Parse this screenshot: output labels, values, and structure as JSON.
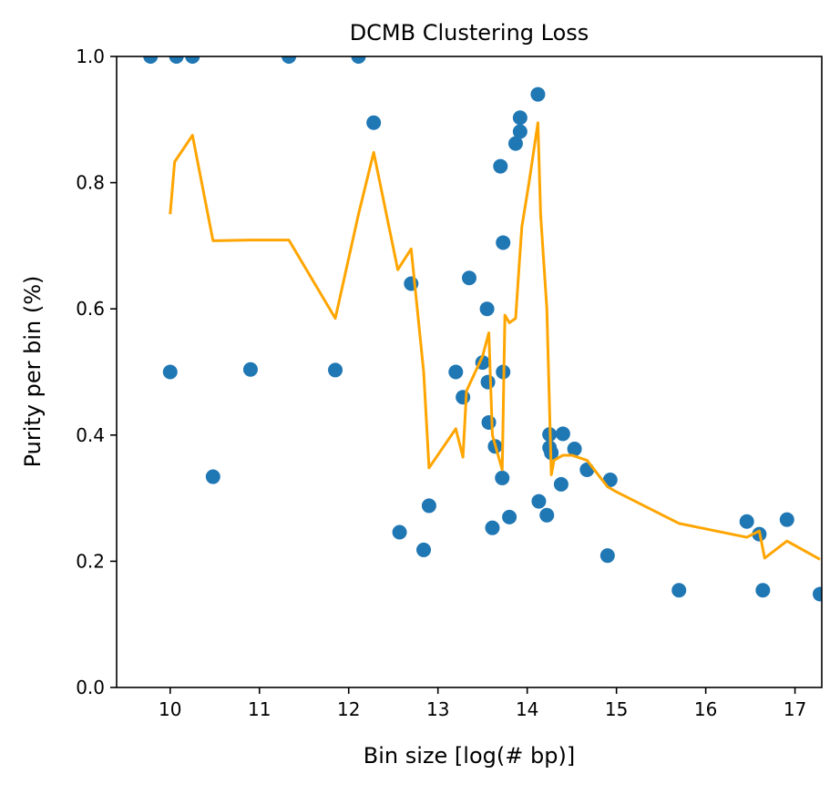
{
  "chart_data": {
    "type": "scatter",
    "title": "DCMB Clustering Loss",
    "xlabel": "Bin size [log(# bp)]",
    "ylabel": "Purity per bin (%)",
    "xlim": [
      9.4,
      17.3
    ],
    "ylim": [
      0.0,
      1.0
    ],
    "xticks": [
      10,
      11,
      12,
      13,
      14,
      15,
      16,
      17
    ],
    "yticks": [
      0.0,
      0.2,
      0.4,
      0.6,
      0.8,
      1.0
    ],
    "ytick_labels": [
      "0.0",
      "0.2",
      "0.4",
      "0.6",
      "0.8",
      "1.0"
    ],
    "grid": false,
    "legend": "none",
    "colors": {
      "points": "#1f77b4",
      "line": "#ffa500"
    },
    "series": [
      {
        "kind": "scatter",
        "points": [
          [
            9.78,
            1.0
          ],
          [
            10.0,
            0.5
          ],
          [
            10.07,
            1.0
          ],
          [
            10.25,
            1.0
          ],
          [
            10.48,
            0.334
          ],
          [
            10.9,
            0.504
          ],
          [
            11.33,
            1.0
          ],
          [
            11.85,
            0.503
          ],
          [
            12.11,
            1.0
          ],
          [
            12.28,
            0.895
          ],
          [
            12.57,
            0.246
          ],
          [
            12.7,
            0.64
          ],
          [
            12.84,
            0.218
          ],
          [
            12.9,
            0.288
          ],
          [
            13.2,
            0.5
          ],
          [
            13.28,
            0.46
          ],
          [
            13.35,
            0.649
          ],
          [
            13.5,
            0.515
          ],
          [
            13.55,
            0.6
          ],
          [
            13.56,
            0.484
          ],
          [
            13.57,
            0.42
          ],
          [
            13.61,
            0.253
          ],
          [
            13.64,
            0.382
          ],
          [
            13.7,
            0.826
          ],
          [
            13.72,
            0.332
          ],
          [
            13.73,
            0.705
          ],
          [
            13.73,
            0.5
          ],
          [
            13.8,
            0.27
          ],
          [
            13.87,
            0.862
          ],
          [
            13.92,
            0.903
          ],
          [
            13.92,
            0.881
          ],
          [
            14.12,
            0.94
          ],
          [
            14.13,
            0.295
          ],
          [
            14.22,
            0.273
          ],
          [
            14.25,
            0.401
          ],
          [
            14.25,
            0.38
          ],
          [
            14.27,
            0.372
          ],
          [
            14.38,
            0.322
          ],
          [
            14.4,
            0.402
          ],
          [
            14.53,
            0.378
          ],
          [
            14.67,
            0.345
          ],
          [
            14.9,
            0.209
          ],
          [
            14.93,
            0.329
          ],
          [
            15.7,
            0.154
          ],
          [
            16.46,
            0.263
          ],
          [
            16.6,
            0.243
          ],
          [
            16.64,
            0.154
          ],
          [
            16.91,
            0.266
          ],
          [
            17.28,
            0.148
          ]
        ]
      },
      {
        "kind": "line",
        "points": [
          [
            10.0,
            0.75
          ],
          [
            10.05,
            0.833
          ],
          [
            10.25,
            0.875
          ],
          [
            10.48,
            0.708
          ],
          [
            10.9,
            0.709
          ],
          [
            11.33,
            0.709
          ],
          [
            11.85,
            0.585
          ],
          [
            12.11,
            0.75
          ],
          [
            12.28,
            0.848
          ],
          [
            12.55,
            0.662
          ],
          [
            12.7,
            0.695
          ],
          [
            12.84,
            0.5
          ],
          [
            12.9,
            0.348
          ],
          [
            13.2,
            0.41
          ],
          [
            13.28,
            0.365
          ],
          [
            13.32,
            0.47
          ],
          [
            13.5,
            0.525
          ],
          [
            13.57,
            0.562
          ],
          [
            13.61,
            0.4
          ],
          [
            13.72,
            0.345
          ],
          [
            13.75,
            0.59
          ],
          [
            13.8,
            0.578
          ],
          [
            13.87,
            0.585
          ],
          [
            13.92,
            0.69
          ],
          [
            13.94,
            0.73
          ],
          [
            14.02,
            0.8
          ],
          [
            14.12,
            0.895
          ],
          [
            14.15,
            0.75
          ],
          [
            14.22,
            0.6
          ],
          [
            14.27,
            0.337
          ],
          [
            14.3,
            0.36
          ],
          [
            14.4,
            0.368
          ],
          [
            14.5,
            0.368
          ],
          [
            14.67,
            0.36
          ],
          [
            14.9,
            0.318
          ],
          [
            15.0,
            0.31
          ],
          [
            15.7,
            0.26
          ],
          [
            16.46,
            0.238
          ],
          [
            16.6,
            0.248
          ],
          [
            16.66,
            0.205
          ],
          [
            16.91,
            0.232
          ],
          [
            17.28,
            0.203
          ]
        ]
      }
    ]
  }
}
